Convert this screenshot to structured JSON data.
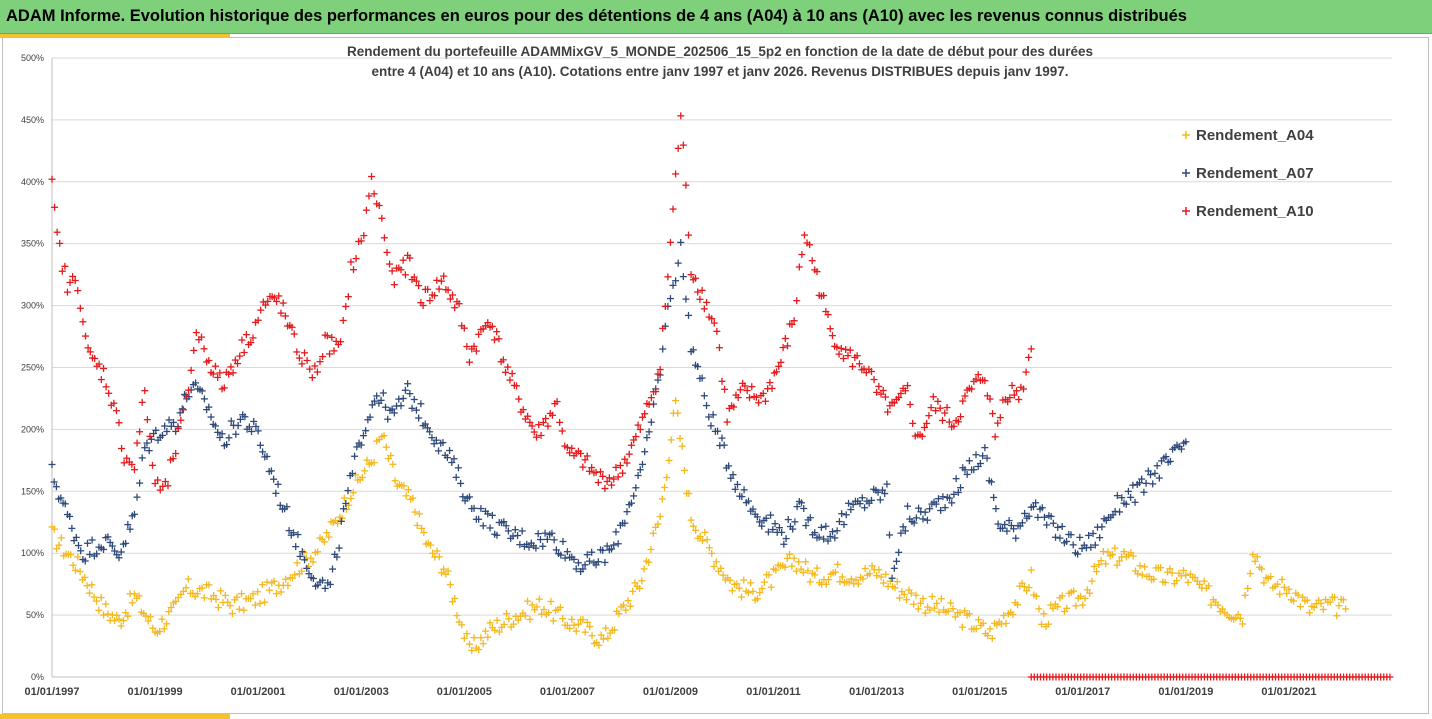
{
  "header": {
    "title": "ADAM Informe. Evolution historique des performances en euros pour des détentions de 4 ans (A04) à 10 ans (A10) avec les revenus connus distribués"
  },
  "chart_data": {
    "type": "scatter",
    "subtitle_line1": "Rendement du portefeuille ADAMMixGV_5_MONDE_202506_15_5p2 en fonction de la date de début pour des durées",
    "subtitle_line2": "entre 4 (A04) et 10 ans (A10). Cotations entre janv 1997 et janv 2026. Revenus DISTRIBUES depuis janv 1997.",
    "y_ticks": [
      "0%",
      "50%",
      "100%",
      "150%",
      "200%",
      "250%",
      "300%",
      "350%",
      "400%",
      "450%",
      "500%"
    ],
    "x_ticks": [
      "01/01/1997",
      "01/01/1999",
      "01/01/2001",
      "01/01/2003",
      "01/01/2005",
      "01/01/2007",
      "01/01/2009",
      "01/01/2011",
      "01/01/2013",
      "01/01/2015",
      "01/01/2017",
      "01/01/2019",
      "01/01/2021"
    ],
    "ylim": [
      0,
      5
    ],
    "xlim": [
      1997.0,
      2023.0
    ],
    "grid": true,
    "legend_position": "top-right",
    "series": [
      {
        "name": "Rendement_A04",
        "color": "#f4b81c",
        "points": [
          [
            1997.0,
            1.15
          ],
          [
            1997.5,
            0.9
          ],
          [
            1998.0,
            0.55
          ],
          [
            1998.3,
            0.45
          ],
          [
            1998.6,
            0.65
          ],
          [
            1999.0,
            0.38
          ],
          [
            1999.4,
            0.55
          ],
          [
            1999.6,
            0.72
          ],
          [
            2000.0,
            0.68
          ],
          [
            2000.5,
            0.58
          ],
          [
            2000.9,
            0.62
          ],
          [
            2001.4,
            0.75
          ],
          [
            2001.8,
            0.9
          ],
          [
            2002.2,
            1.05
          ],
          [
            2002.5,
            1.25
          ],
          [
            2002.8,
            1.5
          ],
          [
            2003.2,
            1.75
          ],
          [
            2003.4,
            1.95
          ],
          [
            2003.7,
            1.55
          ],
          [
            2004.0,
            1.4
          ],
          [
            2004.3,
            1.05
          ],
          [
            2004.6,
            0.9
          ],
          [
            2004.9,
            0.5
          ],
          [
            2005.1,
            0.2
          ],
          [
            2005.5,
            0.38
          ],
          [
            2006.0,
            0.5
          ],
          [
            2006.5,
            0.58
          ],
          [
            2007.0,
            0.45
          ],
          [
            2007.3,
            0.4
          ],
          [
            2007.7,
            0.3
          ],
          [
            2008.0,
            0.5
          ],
          [
            2008.4,
            0.75
          ],
          [
            2008.8,
            1.3
          ],
          [
            2009.1,
            2.2
          ],
          [
            2009.4,
            1.3
          ],
          [
            2009.8,
            1.0
          ],
          [
            2010.2,
            0.75
          ],
          [
            2010.6,
            0.68
          ],
          [
            2011.0,
            0.8
          ],
          [
            2011.4,
            0.95
          ],
          [
            2011.8,
            0.8
          ],
          [
            2012.2,
            0.85
          ],
          [
            2012.6,
            0.82
          ],
          [
            2013.0,
            0.85
          ],
          [
            2013.4,
            0.72
          ],
          [
            2013.9,
            0.6
          ],
          [
            2014.3,
            0.55
          ],
          [
            2014.8,
            0.45
          ],
          [
            2015.2,
            0.35
          ],
          [
            2015.6,
            0.55
          ],
          [
            2016.0,
            0.8
          ],
          [
            2016.2,
            0.45
          ],
          [
            2016.6,
            0.58
          ],
          [
            2017.0,
            0.65
          ],
          [
            2017.4,
            0.95
          ],
          [
            2017.8,
            0.98
          ],
          [
            2018.2,
            0.85
          ],
          [
            2018.6,
            0.8
          ],
          [
            2019.0,
            0.82
          ],
          [
            2019.4,
            0.68
          ],
          [
            2019.8,
            0.55
          ],
          [
            2020.1,
            0.5
          ],
          [
            2020.3,
            1.05
          ],
          [
            2020.6,
            0.75
          ],
          [
            2021.0,
            0.72
          ],
          [
            2021.4,
            0.55
          ],
          [
            2021.8,
            0.58
          ],
          [
            2022.1,
            0.55
          ]
        ]
      },
      {
        "name": "Rendement_A07",
        "color": "#2f4a7a",
        "points": [
          [
            1997.0,
            1.65
          ],
          [
            1997.3,
            1.3
          ],
          [
            1997.6,
            1.0
          ],
          [
            1998.0,
            1.1
          ],
          [
            1998.3,
            1.0
          ],
          [
            1998.6,
            1.3
          ],
          [
            1998.8,
            1.85
          ],
          [
            1999.1,
            2.0
          ],
          [
            1999.4,
            2.05
          ],
          [
            1999.7,
            2.35
          ],
          [
            2000.0,
            2.2
          ],
          [
            2000.3,
            1.9
          ],
          [
            2000.7,
            2.1
          ],
          [
            2001.0,
            1.95
          ],
          [
            2001.3,
            1.6
          ],
          [
            2001.6,
            1.25
          ],
          [
            2001.9,
            0.95
          ],
          [
            2002.2,
            0.75
          ],
          [
            2002.4,
            0.72
          ],
          [
            2002.7,
            1.4
          ],
          [
            2003.0,
            1.95
          ],
          [
            2003.3,
            2.3
          ],
          [
            2003.6,
            2.1
          ],
          [
            2003.9,
            2.3
          ],
          [
            2004.2,
            2.1
          ],
          [
            2004.5,
            1.9
          ],
          [
            2004.8,
            1.7
          ],
          [
            2005.1,
            1.4
          ],
          [
            2005.5,
            1.25
          ],
          [
            2005.9,
            1.15
          ],
          [
            2006.3,
            1.1
          ],
          [
            2006.7,
            1.13
          ],
          [
            2007.0,
            1.0
          ],
          [
            2007.3,
            0.9
          ],
          [
            2007.6,
            0.95
          ],
          [
            2007.9,
            1.05
          ],
          [
            2008.2,
            1.4
          ],
          [
            2008.5,
            1.75
          ],
          [
            2008.8,
            2.5
          ],
          [
            2009.0,
            3.1
          ],
          [
            2009.2,
            3.45
          ],
          [
            2009.4,
            2.7
          ],
          [
            2009.7,
            2.2
          ],
          [
            2010.0,
            1.85
          ],
          [
            2010.3,
            1.55
          ],
          [
            2010.6,
            1.35
          ],
          [
            2010.9,
            1.25
          ],
          [
            2011.2,
            1.15
          ],
          [
            2011.5,
            1.35
          ],
          [
            2011.8,
            1.2
          ],
          [
            2012.1,
            1.15
          ],
          [
            2012.5,
            1.35
          ],
          [
            2012.9,
            1.45
          ],
          [
            2013.2,
            1.5
          ],
          [
            2013.3,
            0.85
          ],
          [
            2013.6,
            1.3
          ],
          [
            2013.9,
            1.3
          ],
          [
            2014.2,
            1.4
          ],
          [
            2014.5,
            1.5
          ],
          [
            2014.8,
            1.7
          ],
          [
            2015.1,
            1.8
          ],
          [
            2015.4,
            1.2
          ],
          [
            2015.7,
            1.2
          ],
          [
            2016.0,
            1.4
          ],
          [
            2016.3,
            1.25
          ],
          [
            2016.6,
            1.15
          ],
          [
            2016.9,
            1.05
          ],
          [
            2017.2,
            1.1
          ],
          [
            2017.5,
            1.3
          ],
          [
            2017.8,
            1.45
          ],
          [
            2018.1,
            1.5
          ],
          [
            2018.4,
            1.65
          ],
          [
            2018.7,
            1.75
          ],
          [
            2019.0,
            1.9
          ]
        ]
      },
      {
        "name": "Rendement_A10",
        "color": "#e41a1c",
        "points": [
          [
            1997.0,
            3.95
          ],
          [
            1997.1,
            3.55
          ],
          [
            1997.3,
            3.15
          ],
          [
            1997.5,
            3.2
          ],
          [
            1997.7,
            2.6
          ],
          [
            1998.0,
            2.45
          ],
          [
            1998.2,
            2.2
          ],
          [
            1998.4,
            1.8
          ],
          [
            1998.6,
            1.7
          ],
          [
            1998.8,
            2.3
          ],
          [
            1999.0,
            1.55
          ],
          [
            1999.2,
            1.5
          ],
          [
            1999.4,
            1.85
          ],
          [
            1999.6,
            2.2
          ],
          [
            1999.8,
            2.8
          ],
          [
            2000.0,
            2.6
          ],
          [
            2000.3,
            2.35
          ],
          [
            2000.6,
            2.6
          ],
          [
            2000.9,
            2.8
          ],
          [
            2001.1,
            3.0
          ],
          [
            2001.4,
            3.05
          ],
          [
            2001.7,
            2.7
          ],
          [
            2001.9,
            2.55
          ],
          [
            2002.1,
            2.45
          ],
          [
            2002.3,
            2.7
          ],
          [
            2002.6,
            2.65
          ],
          [
            2002.8,
            3.3
          ],
          [
            2003.0,
            3.5
          ],
          [
            2003.2,
            4.0
          ],
          [
            2003.4,
            3.7
          ],
          [
            2003.6,
            3.2
          ],
          [
            2003.9,
            3.35
          ],
          [
            2004.2,
            3.05
          ],
          [
            2004.6,
            3.2
          ],
          [
            2004.9,
            2.95
          ],
          [
            2005.1,
            2.6
          ],
          [
            2005.5,
            2.9
          ],
          [
            2005.8,
            2.5
          ],
          [
            2006.1,
            2.2
          ],
          [
            2006.4,
            1.95
          ],
          [
            2006.8,
            2.2
          ],
          [
            2007.0,
            1.8
          ],
          [
            2007.3,
            1.75
          ],
          [
            2007.6,
            1.6
          ],
          [
            2007.9,
            1.6
          ],
          [
            2008.2,
            1.8
          ],
          [
            2008.5,
            2.1
          ],
          [
            2008.8,
            2.5
          ],
          [
            2009.0,
            3.5
          ],
          [
            2009.2,
            4.55
          ],
          [
            2009.4,
            3.3
          ],
          [
            2009.7,
            3.0
          ],
          [
            2009.9,
            2.8
          ],
          [
            2010.1,
            2.1
          ],
          [
            2010.4,
            2.3
          ],
          [
            2010.8,
            2.25
          ],
          [
            2011.1,
            2.5
          ],
          [
            2011.4,
            2.9
          ],
          [
            2011.6,
            3.6
          ],
          [
            2011.8,
            3.3
          ],
          [
            2012.1,
            2.8
          ],
          [
            2012.4,
            2.6
          ],
          [
            2012.8,
            2.5
          ],
          [
            2013.0,
            2.3
          ],
          [
            2013.3,
            2.15
          ],
          [
            2013.6,
            2.3
          ],
          [
            2013.8,
            1.9
          ],
          [
            2014.1,
            2.2
          ],
          [
            2014.5,
            2.05
          ],
          [
            2014.8,
            2.3
          ],
          [
            2015.1,
            2.45
          ],
          [
            2015.3,
            1.95
          ],
          [
            2015.5,
            2.3
          ],
          [
            2015.8,
            2.3
          ],
          [
            2016.0,
            2.65
          ]
        ]
      }
    ]
  }
}
